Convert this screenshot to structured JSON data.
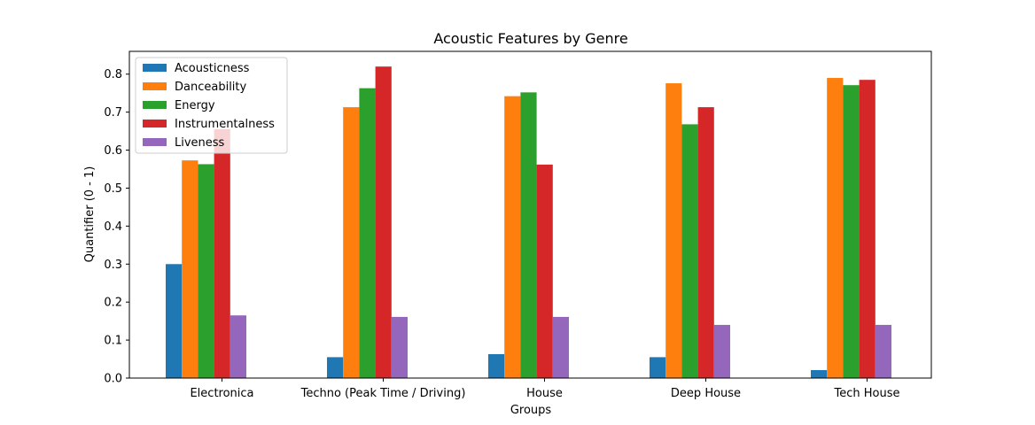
{
  "chart_data": {
    "type": "bar",
    "title": "Acoustic Features by Genre",
    "xlabel": "Groups",
    "ylabel": "Quantifier (0 - 1)",
    "ylim": [
      0,
      0.86
    ],
    "yticks": [
      "0.0",
      "0.1",
      "0.2",
      "0.3",
      "0.4",
      "0.5",
      "0.6",
      "0.7",
      "0.8"
    ],
    "grid": false,
    "legend_position": "top-left",
    "categories": [
      "Electronica",
      "Techno (Peak Time / Driving)",
      "House",
      "Deep House",
      "Tech House"
    ],
    "series": [
      {
        "name": "Acousticness",
        "color": "#1f77b4",
        "values": [
          0.3,
          0.055,
          0.063,
          0.055,
          0.021
        ]
      },
      {
        "name": "Danceability",
        "color": "#ff7f0e",
        "values": [
          0.573,
          0.713,
          0.742,
          0.776,
          0.79
        ]
      },
      {
        "name": "Energy",
        "color": "#2ca02c",
        "values": [
          0.563,
          0.763,
          0.752,
          0.668,
          0.771
        ]
      },
      {
        "name": "Instrumentalness",
        "color": "#d62728",
        "values": [
          0.655,
          0.82,
          0.562,
          0.713,
          0.785
        ]
      },
      {
        "name": "Liveness",
        "color": "#9467bd",
        "values": [
          0.165,
          0.161,
          0.161,
          0.14,
          0.14
        ]
      }
    ]
  }
}
